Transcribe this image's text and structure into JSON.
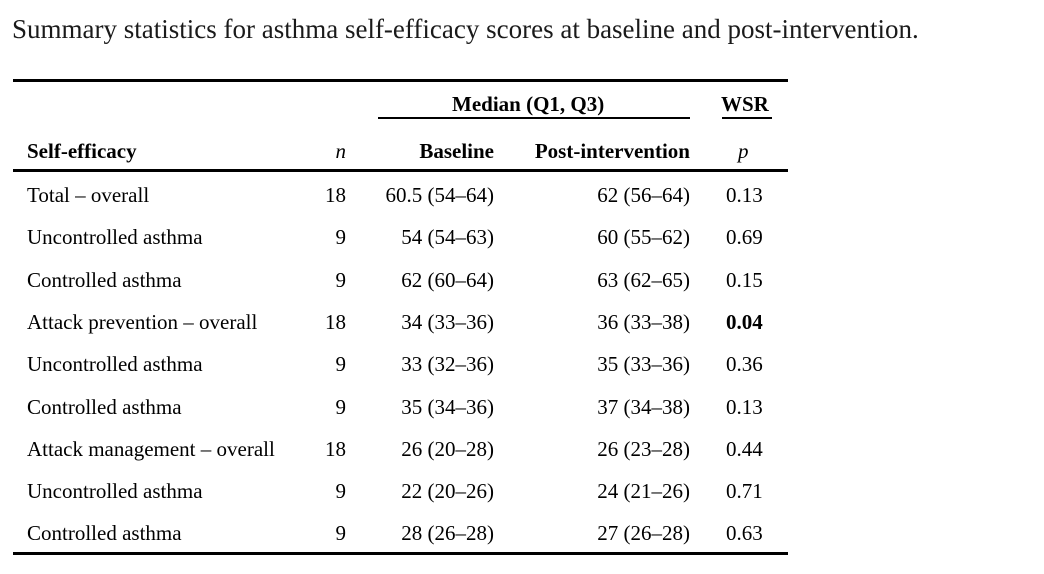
{
  "caption": "Summary statistics for asthma self-efficacy scores at baseline and post-intervention.",
  "header": {
    "group_median": "Median (Q1, Q3)",
    "group_wsr": "WSR",
    "col_label": "Self-efficacy",
    "col_n": "n",
    "col_baseline": "Baseline",
    "col_post": "Post-intervention",
    "col_p": "p"
  },
  "rows": [
    {
      "label": "Total – overall",
      "n": "18",
      "baseline": "60.5 (54–64)",
      "post": "62 (56–64)",
      "p": "0.13",
      "p_bold": false
    },
    {
      "label": "Uncontrolled asthma",
      "n": "9",
      "baseline": "54 (54–63)",
      "post": "60 (55–62)",
      "p": "0.69",
      "p_bold": false
    },
    {
      "label": "Controlled asthma",
      "n": "9",
      "baseline": "62 (60–64)",
      "post": "63 (62–65)",
      "p": "0.15",
      "p_bold": false
    },
    {
      "label": "Attack prevention – overall",
      "n": "18",
      "baseline": "34 (33–36)",
      "post": "36 (33–38)",
      "p": "0.04",
      "p_bold": true
    },
    {
      "label": "Uncontrolled asthma",
      "n": "9",
      "baseline": "33 (32–36)",
      "post": "35 (33–36)",
      "p": "0.36",
      "p_bold": false
    },
    {
      "label": "Controlled asthma",
      "n": "9",
      "baseline": "35 (34–36)",
      "post": "37 (34–38)",
      "p": "0.13",
      "p_bold": false
    },
    {
      "label": "Attack management – overall",
      "n": "18",
      "baseline": "26 (20–28)",
      "post": "26 (23–28)",
      "p": "0.44",
      "p_bold": false
    },
    {
      "label": "Uncontrolled asthma",
      "n": "9",
      "baseline": "22 (20–26)",
      "post": "24 (21–26)",
      "p": "0.71",
      "p_bold": false
    },
    {
      "label": "Controlled asthma",
      "n": "9",
      "baseline": "28 (26–28)",
      "post": "27 (26–28)",
      "p": "0.63",
      "p_bold": false
    }
  ]
}
